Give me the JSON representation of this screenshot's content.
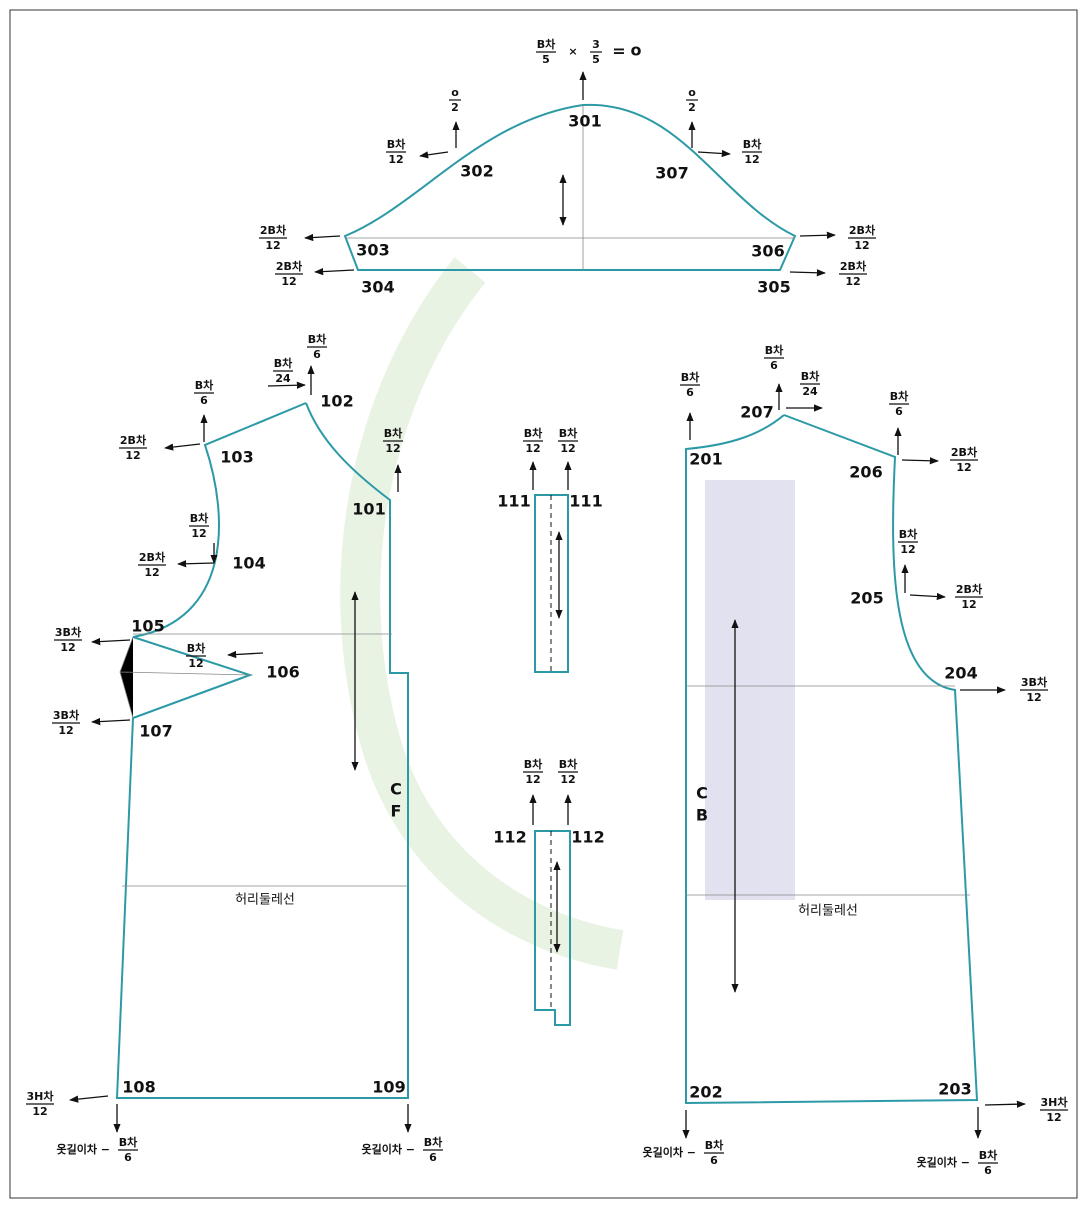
{
  "formula": {
    "a": {
      "num": "B차",
      "den": "5"
    },
    "op1": "×",
    "b": {
      "num": "3",
      "den": "5"
    },
    "op2": "=",
    "result": "o"
  },
  "points": [
    "301",
    "302",
    "303",
    "304",
    "305",
    "306",
    "307",
    "101",
    "102",
    "103",
    "104",
    "105",
    "106",
    "107",
    "108",
    "109",
    "111",
    "111",
    "112",
    "112",
    "201",
    "202",
    "203",
    "204",
    "205",
    "206",
    "207"
  ],
  "fractions": [
    {
      "num": "o",
      "den": "2"
    },
    {
      "num": "o",
      "den": "2"
    },
    {
      "num": "B차",
      "den": "12"
    },
    {
      "num": "B차",
      "den": "12"
    },
    {
      "num": "2B차",
      "den": "12"
    },
    {
      "num": "2B차",
      "den": "12"
    },
    {
      "num": "2B차",
      "den": "12"
    },
    {
      "num": "2B차",
      "den": "12"
    },
    {
      "num": "B차",
      "den": "6"
    },
    {
      "num": "B차",
      "den": "24"
    },
    {
      "num": "B차",
      "den": "6"
    },
    {
      "num": "2B차",
      "den": "12"
    },
    {
      "num": "B차",
      "den": "12"
    },
    {
      "num": "B차",
      "den": "12"
    },
    {
      "num": "2B차",
      "den": "12"
    },
    {
      "num": "3B차",
      "den": "12"
    },
    {
      "num": "B차",
      "den": "12"
    },
    {
      "num": "3B차",
      "den": "12"
    },
    {
      "num": "3H차",
      "den": "12"
    },
    {
      "num": "B차",
      "den": "12"
    },
    {
      "num": "B차",
      "den": "12"
    },
    {
      "num": "B차",
      "den": "12"
    },
    {
      "num": "B차",
      "den": "12"
    },
    {
      "num": "B차",
      "den": "6"
    },
    {
      "num": "B차",
      "den": "6"
    },
    {
      "num": "B차",
      "den": "24"
    },
    {
      "num": "B차",
      "den": "6"
    },
    {
      "num": "2B차",
      "den": "12"
    },
    {
      "num": "B차",
      "den": "12"
    },
    {
      "num": "2B차",
      "den": "12"
    },
    {
      "num": "3B차",
      "den": "12"
    },
    {
      "num": "3H차",
      "den": "12"
    }
  ],
  "length_labels": [
    {
      "prefix": "옷길이차 −",
      "num": "B차",
      "den": "6"
    },
    {
      "prefix": "옷길이차 −",
      "num": "B차",
      "den": "6"
    },
    {
      "prefix": "옷길이차 −",
      "num": "B차",
      "den": "6"
    },
    {
      "prefix": "옷길이차 −",
      "num": "B차",
      "den": "6"
    }
  ],
  "cf": [
    "C",
    "F"
  ],
  "cb": [
    "C",
    "B"
  ],
  "waist_labels": [
    "허리둘레선",
    "허리둘레선"
  ]
}
